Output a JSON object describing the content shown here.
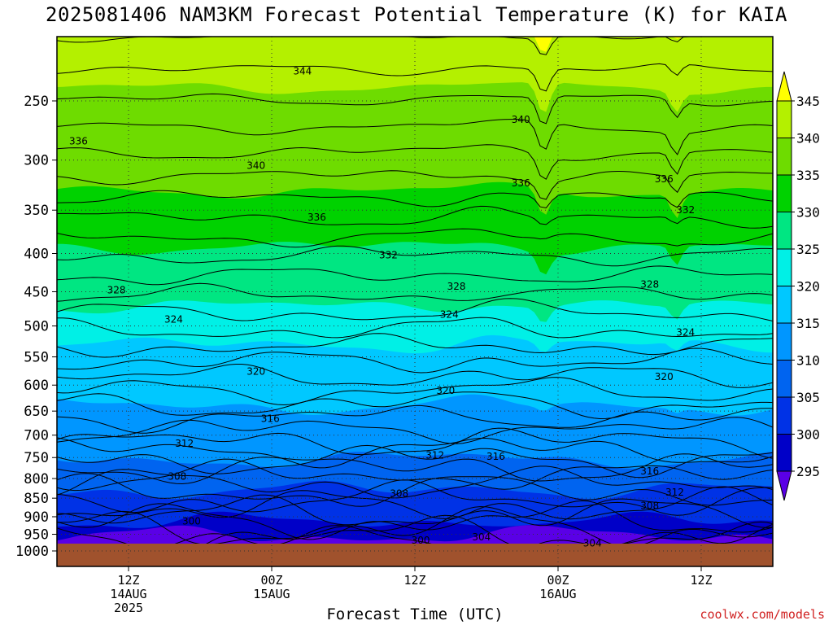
{
  "chart_data": {
    "type": "contour",
    "title": "2025081406 NAM3KM Forecast Potential Temperature (K) for KAIA",
    "xlabel": "Forecast Time (UTC)",
    "ylabel": "",
    "credit": "coolwx.com/models",
    "y_scale": "log-pressure",
    "y_ticks": [
      250,
      300,
      350,
      400,
      450,
      500,
      550,
      600,
      650,
      700,
      750,
      800,
      850,
      900,
      950,
      1000
    ],
    "x_ticks": [
      {
        "line1": "12Z",
        "line2": "14AUG",
        "line3": "2025"
      },
      {
        "line1": "00Z",
        "line2": "15AUG",
        "line3": ""
      },
      {
        "line1": "12Z",
        "line2": "",
        "line3": ""
      },
      {
        "line1": "00Z",
        "line2": "16AUG",
        "line3": ""
      },
      {
        "line1": "12Z",
        "line2": "",
        "line3": ""
      }
    ],
    "colorbar": {
      "labels": [
        345,
        340,
        335,
        330,
        325,
        320,
        315,
        310,
        305,
        300,
        295
      ],
      "colors": [
        "#ffff00",
        "#b4f000",
        "#6edc00",
        "#00d200",
        "#00e682",
        "#00f0e6",
        "#00c8ff",
        "#0096ff",
        "#0064f0",
        "#0032e6",
        "#0000c8",
        "#5a00e6"
      ]
    },
    "isentropes": [
      {
        "theta": 300,
        "p": 932
      },
      {
        "theta": 304,
        "p": 978
      },
      {
        "theta": 308,
        "p": 828
      },
      {
        "theta": 312,
        "p": 723
      },
      {
        "theta": 316,
        "p": 668
      },
      {
        "theta": 320,
        "p": 585
      },
      {
        "theta": 324,
        "p": 490
      },
      {
        "theta": 328,
        "p": 435
      },
      {
        "theta": 332,
        "p": 378
      },
      {
        "theta": 336,
        "p": 315
      },
      {
        "theta": 340,
        "p": 270
      },
      {
        "theta": 344,
        "p": 218
      }
    ],
    "contour_labels": [
      {
        "text": "344",
        "x": 0.33,
        "p": 228
      },
      {
        "text": "336",
        "x": 0.017,
        "p": 283
      },
      {
        "text": "340",
        "x": 0.265,
        "p": 305
      },
      {
        "text": "340",
        "x": 0.635,
        "p": 265
      },
      {
        "text": "336",
        "x": 0.635,
        "p": 322
      },
      {
        "text": "336",
        "x": 0.835,
        "p": 318
      },
      {
        "text": "336",
        "x": 0.35,
        "p": 358
      },
      {
        "text": "332",
        "x": 0.865,
        "p": 350
      },
      {
        "text": "332",
        "x": 0.45,
        "p": 402
      },
      {
        "text": "328",
        "x": 0.07,
        "p": 448
      },
      {
        "text": "328",
        "x": 0.545,
        "p": 443
      },
      {
        "text": "328",
        "x": 0.815,
        "p": 440
      },
      {
        "text": "324",
        "x": 0.15,
        "p": 490
      },
      {
        "text": "324",
        "x": 0.535,
        "p": 483
      },
      {
        "text": "324",
        "x": 0.865,
        "p": 510
      },
      {
        "text": "320",
        "x": 0.265,
        "p": 575
      },
      {
        "text": "320",
        "x": 0.53,
        "p": 610
      },
      {
        "text": "320",
        "x": 0.835,
        "p": 585
      },
      {
        "text": "316",
        "x": 0.285,
        "p": 665
      },
      {
        "text": "316",
        "x": 0.6,
        "p": 748
      },
      {
        "text": "316",
        "x": 0.815,
        "p": 782
      },
      {
        "text": "312",
        "x": 0.165,
        "p": 718
      },
      {
        "text": "312",
        "x": 0.515,
        "p": 745
      },
      {
        "text": "312",
        "x": 0.85,
        "p": 835
      },
      {
        "text": "308",
        "x": 0.155,
        "p": 795
      },
      {
        "text": "308",
        "x": 0.465,
        "p": 838
      },
      {
        "text": "308",
        "x": 0.815,
        "p": 870
      },
      {
        "text": "300",
        "x": 0.175,
        "p": 912
      },
      {
        "text": "300",
        "x": 0.495,
        "p": 968
      },
      {
        "text": "304",
        "x": 0.58,
        "p": 958
      },
      {
        "text": "304",
        "x": 0.735,
        "p": 977
      }
    ]
  }
}
